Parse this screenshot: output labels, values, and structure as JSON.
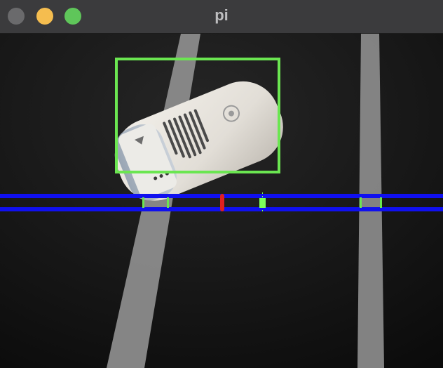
{
  "window": {
    "title": "pi",
    "buttons": {
      "close_color": "#6a6a6c",
      "minimize_color": "#f5bd4f",
      "zoom_color": "#5fc65a"
    }
  },
  "camera_feed": {
    "scene": {
      "floor_color": "#141414",
      "tape_color": "#8e8e8e"
    },
    "overlay": {
      "detection_box_color": "#6be651",
      "scan_lines_color": "#1010f0",
      "edge_marker_color": "#6be651",
      "center_marker_color": "#e02020",
      "object_center_marker_color": "#7cff5a"
    }
  }
}
